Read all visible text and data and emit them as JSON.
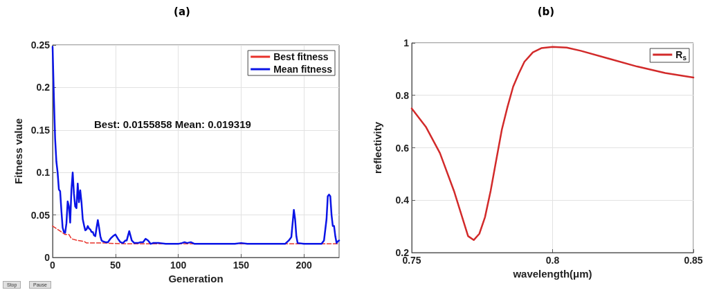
{
  "chart_data": [
    {
      "type": "line",
      "title": "(a)",
      "xlabel": "Generation",
      "ylabel": "Fitness value",
      "xlim": [
        0,
        228
      ],
      "xticks": [
        0,
        50,
        100,
        150,
        200
      ],
      "ylim": [
        0,
        0.25
      ],
      "yticks": [
        0,
        0.05,
        0.1,
        0.15,
        0.2,
        0.25
      ],
      "grid": true,
      "legend": "top right",
      "marker": "none",
      "annotations": [
        "Best: 0.0155858 Mean: 0.019319",
        "Stop",
        "Pause"
      ],
      "series": [
        {
          "name": "Best fitness",
          "color": "#e8322a",
          "line_style": "dashed",
          "x": [
            0,
            5,
            10,
            13,
            15,
            20,
            25,
            27,
            40,
            60,
            100,
            228
          ],
          "values": [
            0.037,
            0.032,
            0.027,
            0.027,
            0.022,
            0.02,
            0.019,
            0.017,
            0.017,
            0.016,
            0.016,
            0.016
          ]
        },
        {
          "name": "Mean fitness",
          "color": "#0a14e6",
          "line_style": "solid",
          "x": [
            0,
            1,
            2,
            3,
            4,
            5,
            6,
            7,
            8,
            9,
            10,
            11,
            12,
            13,
            14,
            15,
            16,
            17,
            18,
            19,
            20,
            21,
            22,
            23,
            24,
            25,
            26,
            27,
            28,
            29,
            30,
            31,
            32,
            33,
            34,
            35,
            36,
            37,
            38,
            39,
            40,
            42,
            44,
            46,
            48,
            50,
            52,
            54,
            56,
            58,
            59,
            61,
            63,
            65,
            68,
            70,
            72,
            74,
            76,
            78,
            80,
            85,
            90,
            95,
            100,
            103,
            105,
            107,
            110,
            113,
            120,
            130,
            140,
            145,
            150,
            155,
            170,
            185,
            188,
            190,
            192,
            193,
            194,
            195,
            200,
            210,
            214,
            216,
            218,
            219,
            220,
            221,
            222,
            223,
            224,
            225,
            226,
            227,
            228
          ],
          "values": [
            0.248,
            0.19,
            0.14,
            0.113,
            0.1,
            0.08,
            0.078,
            0.055,
            0.035,
            0.03,
            0.029,
            0.04,
            0.066,
            0.06,
            0.041,
            0.08,
            0.1,
            0.075,
            0.06,
            0.058,
            0.087,
            0.065,
            0.079,
            0.065,
            0.045,
            0.038,
            0.032,
            0.033,
            0.037,
            0.034,
            0.033,
            0.03,
            0.03,
            0.026,
            0.025,
            0.035,
            0.044,
            0.035,
            0.025,
            0.02,
            0.019,
            0.018,
            0.018,
            0.022,
            0.025,
            0.027,
            0.022,
            0.018,
            0.017,
            0.02,
            0.02,
            0.031,
            0.02,
            0.017,
            0.017,
            0.018,
            0.018,
            0.022,
            0.02,
            0.016,
            0.017,
            0.017,
            0.016,
            0.016,
            0.016,
            0.017,
            0.018,
            0.017,
            0.018,
            0.016,
            0.016,
            0.016,
            0.016,
            0.016,
            0.017,
            0.016,
            0.016,
            0.016,
            0.02,
            0.024,
            0.056,
            0.045,
            0.025,
            0.017,
            0.016,
            0.016,
            0.016,
            0.02,
            0.045,
            0.072,
            0.074,
            0.072,
            0.05,
            0.037,
            0.037,
            0.025,
            0.017,
            0.019,
            0.02
          ]
        }
      ]
    },
    {
      "type": "line",
      "title": "(b)",
      "xlabel": "wavelength(μm)",
      "ylabel": "reflectivity",
      "xlim": [
        0.75,
        0.85
      ],
      "xticks": [
        0.75,
        0.8,
        0.85
      ],
      "ylim": [
        0.2,
        1
      ],
      "yticks": [
        0.2,
        0.4,
        0.6,
        0.8,
        1
      ],
      "grid": true,
      "legend": "top right",
      "marker": "none",
      "series": [
        {
          "name": "R$_{s}$",
          "color": "#d22a2a",
          "line_style": "solid",
          "x": [
            0.75,
            0.755,
            0.76,
            0.765,
            0.77,
            0.772,
            0.774,
            0.776,
            0.778,
            0.78,
            0.782,
            0.784,
            0.786,
            0.788,
            0.79,
            0.793,
            0.796,
            0.8,
            0.805,
            0.81,
            0.82,
            0.83,
            0.84,
            0.85
          ],
          "values": [
            0.75,
            0.68,
            0.58,
            0.435,
            0.263,
            0.248,
            0.272,
            0.335,
            0.435,
            0.553,
            0.67,
            0.756,
            0.833,
            0.883,
            0.928,
            0.964,
            0.98,
            0.985,
            0.982,
            0.97,
            0.94,
            0.91,
            0.885,
            0.868
          ]
        }
      ]
    }
  ]
}
